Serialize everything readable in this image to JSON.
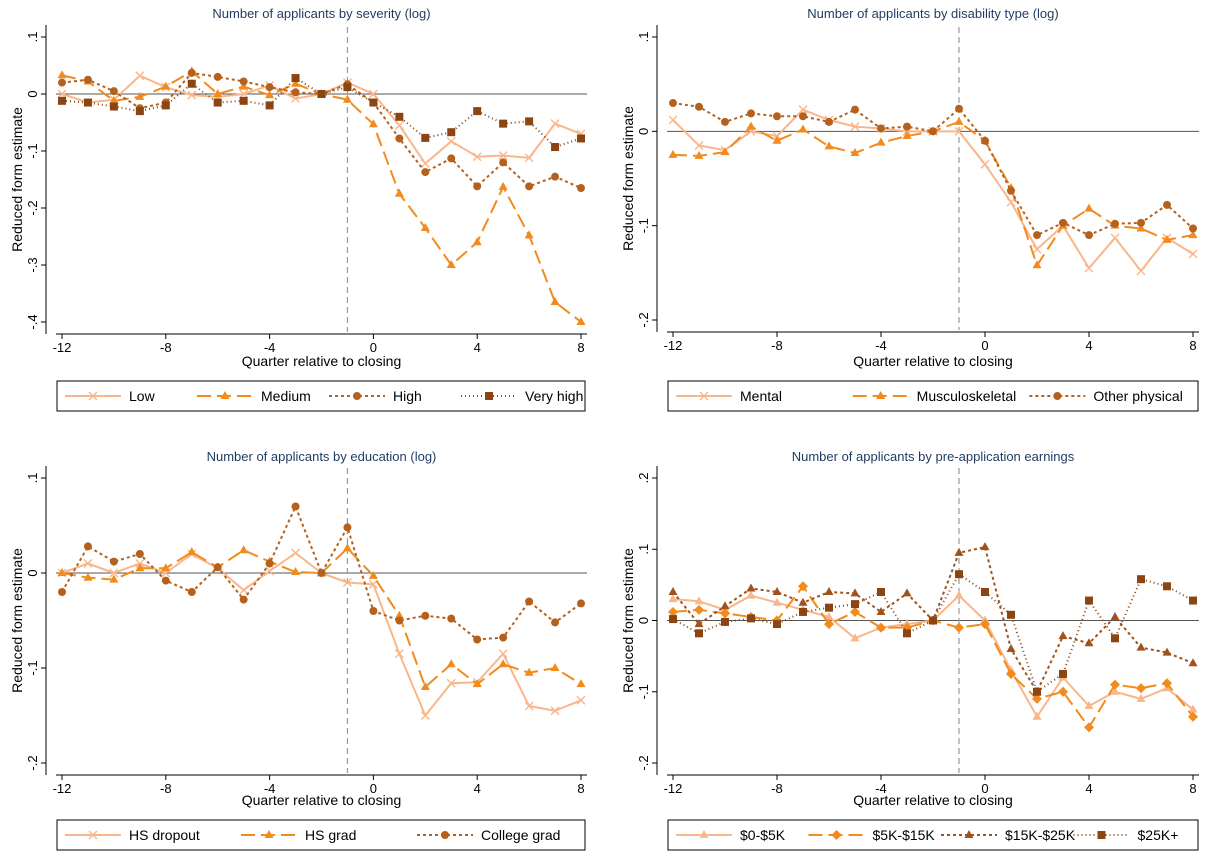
{
  "chart_data": [
    {
      "type": "line",
      "title": "Number of applicants by severity (log)",
      "xlabel": "Quarter relative to closing",
      "ylabel": "Reduced form estimate",
      "xlim": [
        -12,
        8
      ],
      "ylim": [
        -0.4,
        0.1
      ],
      "xticks": [
        -12,
        -8,
        -4,
        0,
        4,
        8
      ],
      "xtick_labels": [
        "-12",
        "-8",
        "-4",
        "0",
        "4",
        "8"
      ],
      "yticks": [
        -0.4,
        -0.3,
        -0.2,
        -0.1,
        0,
        0.1
      ],
      "ytick_labels": [
        "-.4",
        "-.3",
        "-.2",
        "-.1",
        "0",
        ".1"
      ],
      "zero_line": 0,
      "vline": -1,
      "x": [
        -12,
        -11,
        -10,
        -9,
        -8,
        -7,
        -6,
        -5,
        -4,
        -3,
        -2,
        -1,
        0,
        1,
        2,
        3,
        4,
        5,
        6,
        7,
        8
      ],
      "series": [
        {
          "name": "Low",
          "color": "#f9b68a",
          "marker": "x",
          "dash": "",
          "values": [
            0.0,
            -0.015,
            -0.01,
            0.032,
            0.012,
            -0.002,
            -0.005,
            0.0,
            0.015,
            -0.008,
            0.0,
            0.02,
            0.0,
            -0.055,
            -0.122,
            -0.083,
            -0.11,
            -0.108,
            -0.112,
            -0.052,
            -0.07
          ]
        },
        {
          "name": "Medium",
          "color": "#f28a1c",
          "marker": "triangle",
          "dash": "14 6",
          "values": [
            0.033,
            0.022,
            -0.012,
            -0.005,
            0.013,
            0.04,
            0.0,
            0.013,
            -0.002,
            0.018,
            0.0,
            -0.01,
            -0.053,
            -0.175,
            -0.235,
            -0.3,
            -0.26,
            -0.163,
            -0.248,
            -0.365,
            -0.4
          ]
        },
        {
          "name": "High",
          "color": "#b5611d",
          "marker": "circle",
          "dash": "3 3",
          "values": [
            0.02,
            0.025,
            0.005,
            -0.025,
            -0.015,
            0.037,
            0.03,
            0.022,
            0.012,
            0.003,
            0.0,
            0.017,
            -0.015,
            -0.078,
            -0.137,
            -0.113,
            -0.162,
            -0.12,
            -0.162,
            -0.145,
            -0.165
          ]
        },
        {
          "name": "Very high",
          "color": "#8b4513",
          "marker": "square",
          "dash": "1 3",
          "values": [
            -0.012,
            -0.015,
            -0.022,
            -0.03,
            -0.02,
            0.018,
            -0.015,
            -0.012,
            -0.02,
            0.028,
            0.0,
            0.012,
            -0.015,
            -0.04,
            -0.077,
            -0.067,
            -0.03,
            -0.052,
            -0.048,
            -0.093,
            -0.078
          ]
        }
      ]
    },
    {
      "type": "line",
      "title": "Number of applicants by disability type (log)",
      "xlabel": "Quarter relative to closing",
      "ylabel": "Reduced form estimate",
      "xlim": [
        -12,
        8
      ],
      "ylim": [
        -0.2,
        0.1
      ],
      "xticks": [
        -12,
        -8,
        -4,
        0,
        4,
        8
      ],
      "xtick_labels": [
        "-12",
        "-8",
        "-4",
        "0",
        "4",
        "8"
      ],
      "yticks": [
        -0.2,
        -0.1,
        0,
        0.1
      ],
      "ytick_labels": [
        "-.2",
        "-.1",
        "0",
        ".1"
      ],
      "zero_line": 0,
      "vline": -1,
      "x": [
        -12,
        -11,
        -10,
        -9,
        -8,
        -7,
        -6,
        -5,
        -4,
        -3,
        -2,
        -1,
        0,
        1,
        2,
        3,
        4,
        5,
        6,
        7,
        8
      ],
      "series": [
        {
          "name": "Mental",
          "color": "#f9b68a",
          "marker": "x",
          "dash": "",
          "values": [
            0.012,
            -0.015,
            -0.02,
            0.0,
            -0.005,
            0.023,
            0.012,
            0.005,
            0.003,
            0.0,
            0.0,
            0.0,
            -0.035,
            -0.075,
            -0.125,
            -0.1,
            -0.145,
            -0.113,
            -0.148,
            -0.113,
            -0.13
          ]
        },
        {
          "name": "Musculoskeletal",
          "color": "#f28a1c",
          "marker": "triangle",
          "dash": "14 6",
          "values": [
            -0.025,
            -0.026,
            -0.022,
            0.005,
            -0.01,
            0.002,
            -0.016,
            -0.023,
            -0.012,
            -0.005,
            0.0,
            0.01,
            -0.01,
            -0.06,
            -0.142,
            -0.1,
            -0.082,
            -0.1,
            -0.103,
            -0.115,
            -0.11
          ]
        },
        {
          "name": "Other physical",
          "color": "#b5611d",
          "marker": "circle",
          "dash": "3 3",
          "values": [
            0.03,
            0.026,
            0.01,
            0.019,
            0.016,
            0.016,
            0.01,
            0.023,
            0.003,
            0.005,
            0.0,
            0.024,
            -0.01,
            -0.063,
            -0.11,
            -0.097,
            -0.11,
            -0.098,
            -0.097,
            -0.078,
            -0.103
          ]
        }
      ]
    },
    {
      "type": "line",
      "title": "Number of applicants by education (log)",
      "xlabel": "Quarter relative to closing",
      "ylabel": "Reduced form estimate",
      "xlim": [
        -12,
        8
      ],
      "ylim": [
        -0.2,
        0.1
      ],
      "xticks": [
        -12,
        -8,
        -4,
        0,
        4,
        8
      ],
      "xtick_labels": [
        "-12",
        "-8",
        "-4",
        "0",
        "4",
        "8"
      ],
      "yticks": [
        -0.2,
        -0.1,
        0,
        0.1
      ],
      "ytick_labels": [
        "-.2",
        "-.1",
        "0",
        ".1"
      ],
      "zero_line": 0,
      "vline": -1,
      "x": [
        -12,
        -11,
        -10,
        -9,
        -8,
        -7,
        -6,
        -5,
        -4,
        -3,
        -2,
        -1,
        0,
        1,
        2,
        3,
        4,
        5,
        6,
        7,
        8
      ],
      "series": [
        {
          "name": "HS dropout",
          "color": "#f9b68a",
          "marker": "x",
          "dash": "",
          "values": [
            0.0,
            0.01,
            0.0,
            0.01,
            0.0,
            0.02,
            0.005,
            -0.018,
            0.002,
            0.021,
            0.0,
            -0.01,
            -0.012,
            -0.085,
            -0.15,
            -0.116,
            -0.115,
            -0.085,
            -0.14,
            -0.145,
            -0.134
          ]
        },
        {
          "name": "HS grad",
          "color": "#f28a1c",
          "marker": "triangle",
          "dash": "14 6",
          "values": [
            0.0,
            -0.005,
            -0.007,
            0.005,
            0.005,
            0.022,
            0.006,
            0.024,
            0.012,
            0.001,
            0.0,
            0.026,
            -0.003,
            -0.045,
            -0.12,
            -0.096,
            -0.117,
            -0.096,
            -0.105,
            -0.1,
            -0.117
          ]
        },
        {
          "name": "College grad",
          "color": "#b5611d",
          "marker": "circle",
          "dash": "3 3",
          "values": [
            -0.02,
            0.028,
            0.012,
            0.02,
            -0.008,
            -0.02,
            0.006,
            -0.028,
            0.01,
            0.07,
            0.0,
            0.048,
            -0.04,
            -0.05,
            -0.045,
            -0.048,
            -0.07,
            -0.068,
            -0.03,
            -0.052,
            -0.032
          ]
        }
      ]
    },
    {
      "type": "line",
      "title": "Number of applicants by pre-application earnings",
      "xlabel": "Quarter relative to closing",
      "ylabel": "Reduced form estimate",
      "xlim": [
        -12,
        8
      ],
      "ylim": [
        -0.2,
        0.2
      ],
      "xticks": [
        -12,
        -8,
        -4,
        0,
        4,
        8
      ],
      "xtick_labels": [
        "-12",
        "-8",
        "-4",
        "0",
        "4",
        "8"
      ],
      "yticks": [
        -0.2,
        -0.1,
        0,
        0.1,
        0.2
      ],
      "ytick_labels": [
        "-.2",
        "-.1",
        "0",
        ".1",
        ".2"
      ],
      "zero_line": 0,
      "vline": -1,
      "x": [
        -12,
        -11,
        -10,
        -9,
        -8,
        -7,
        -6,
        -5,
        -4,
        -3,
        -2,
        -1,
        0,
        1,
        2,
        3,
        4,
        5,
        6,
        7,
        8
      ],
      "series": [
        {
          "name": "$0-$5K",
          "color": "#f9b68a",
          "marker": "triangle",
          "dash": "",
          "values": [
            0.03,
            0.027,
            0.015,
            0.035,
            0.025,
            0.015,
            0.005,
            -0.025,
            -0.01,
            -0.005,
            0.0,
            0.035,
            0.0,
            -0.07,
            -0.135,
            -0.08,
            -0.12,
            -0.1,
            -0.11,
            -0.095,
            -0.125
          ]
        },
        {
          "name": "$5K-$15K",
          "color": "#f28a1c",
          "marker": "diamond",
          "dash": "14 6",
          "values": [
            0.012,
            0.015,
            0.01,
            0.005,
            0.0,
            0.048,
            -0.005,
            0.012,
            -0.01,
            -0.01,
            0.0,
            -0.01,
            -0.005,
            -0.075,
            -0.11,
            -0.1,
            -0.15,
            -0.09,
            -0.095,
            -0.088,
            -0.135
          ]
        },
        {
          "name": "$15K-$25K",
          "color": "#a0521d",
          "marker": "triangle",
          "dash": "3 3",
          "values": [
            0.04,
            -0.005,
            0.02,
            0.045,
            0.04,
            0.025,
            0.04,
            0.038,
            0.012,
            0.038,
            0.0,
            0.095,
            0.103,
            -0.04,
            -0.1,
            -0.022,
            -0.032,
            0.005,
            -0.038,
            -0.045,
            -0.06
          ]
        },
        {
          "name": "$25K+",
          "color": "#8b4513",
          "marker": "square",
          "dash": "1 3",
          "values": [
            0.002,
            -0.018,
            -0.002,
            0.003,
            -0.005,
            0.012,
            0.018,
            0.023,
            0.04,
            -0.018,
            0.0,
            0.065,
            0.04,
            0.008,
            -0.1,
            -0.075,
            0.028,
            -0.025,
            0.058,
            0.048,
            0.028
          ]
        }
      ]
    }
  ]
}
